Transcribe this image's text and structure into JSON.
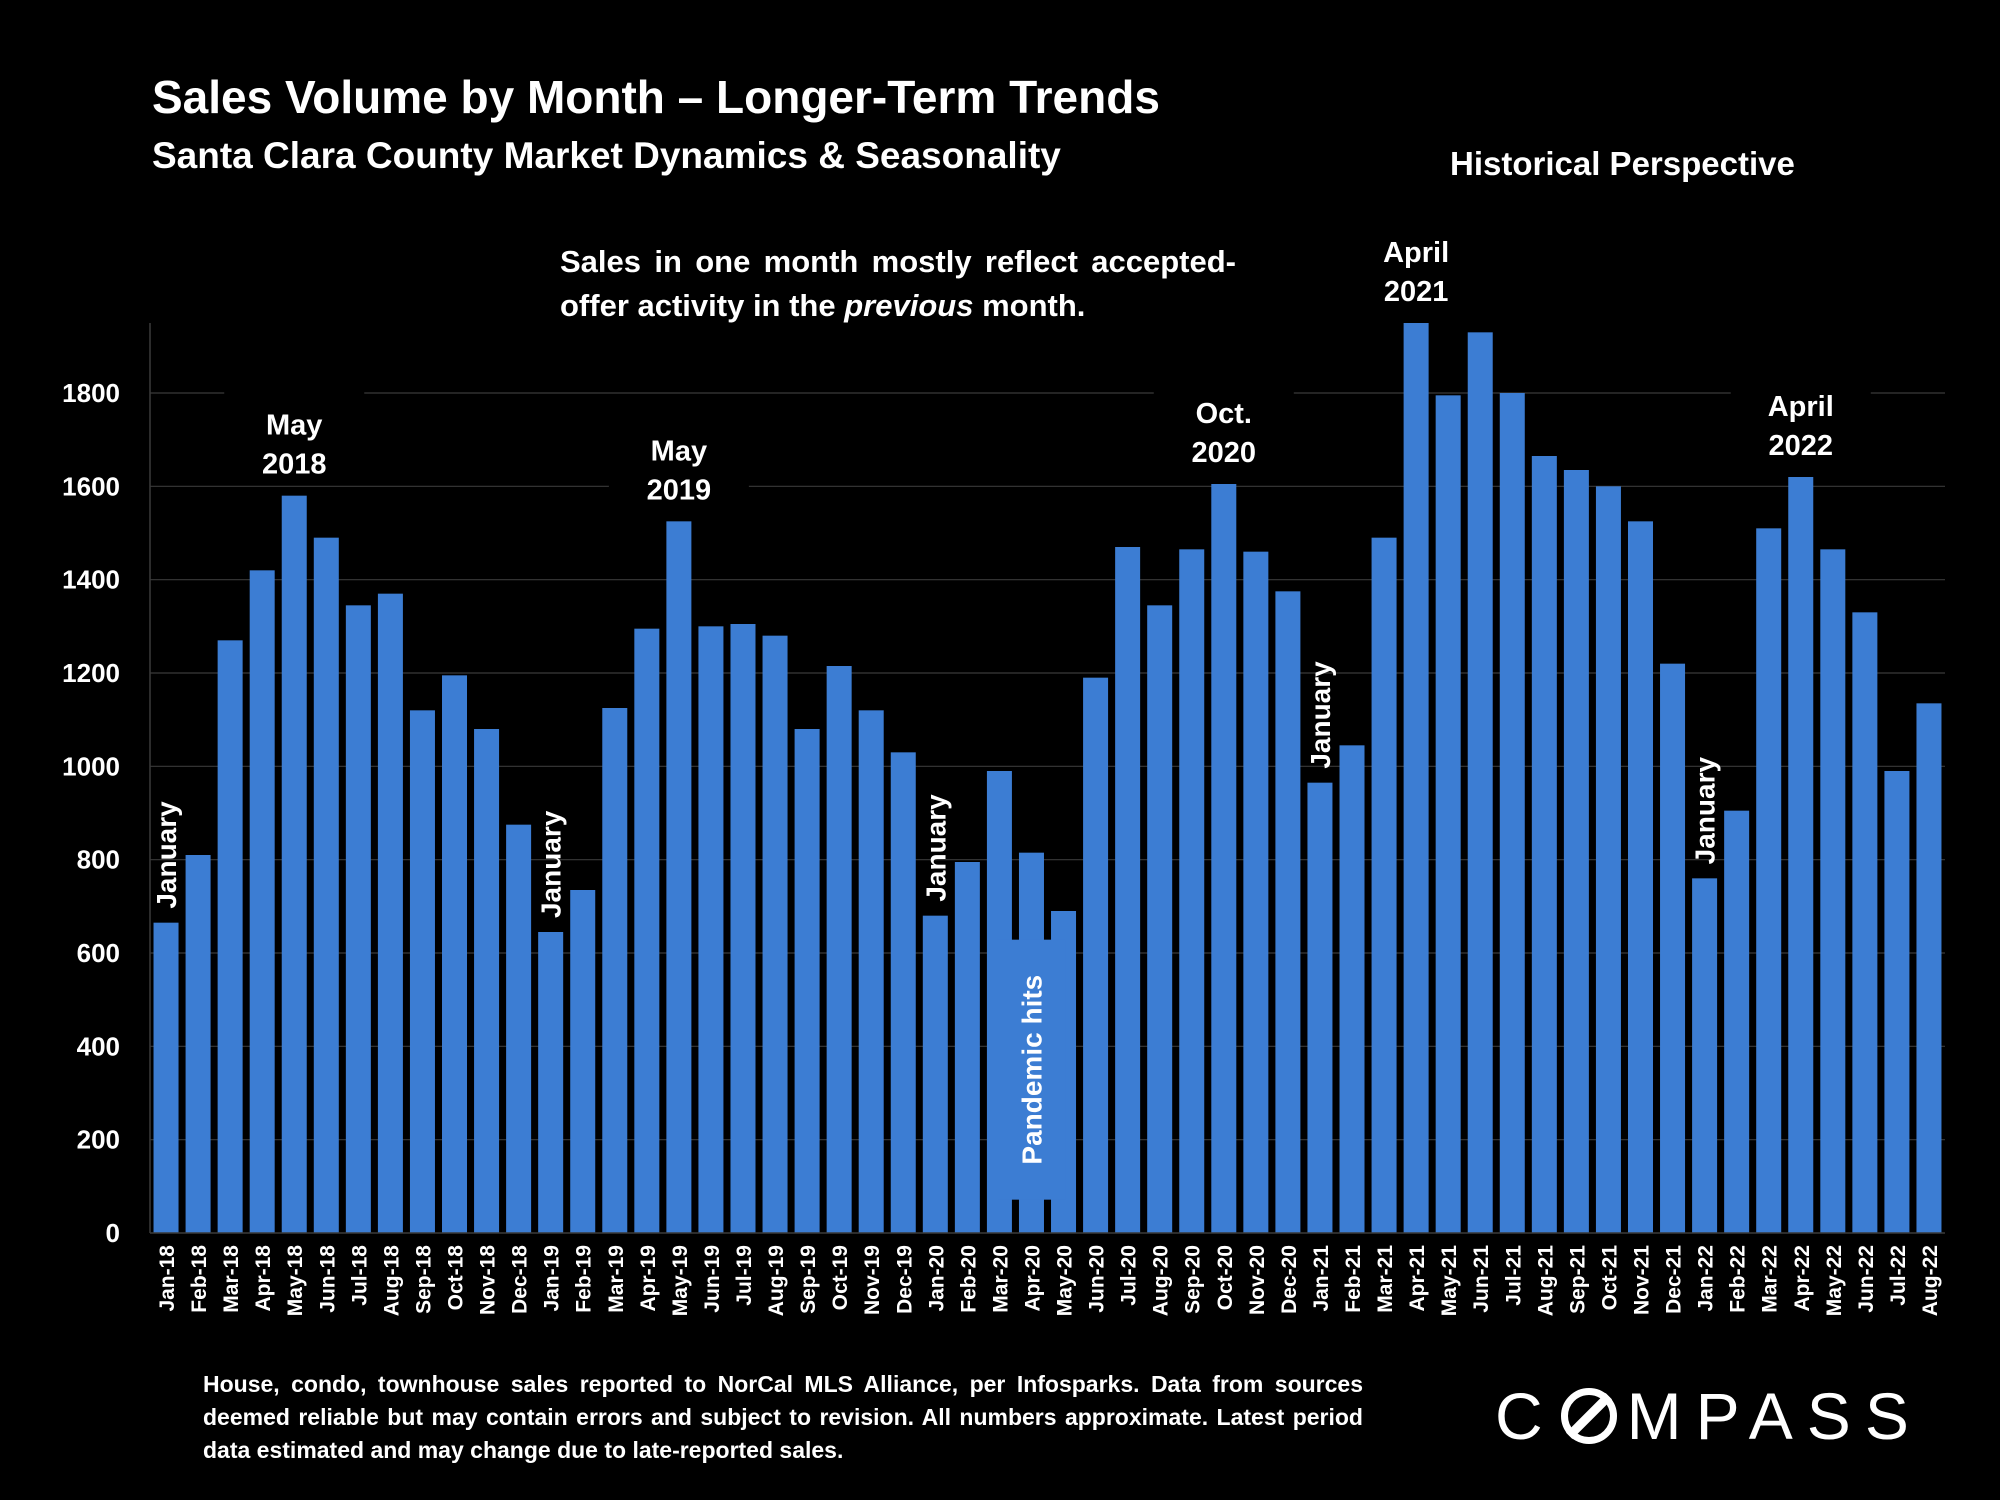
{
  "header": {
    "title": "Sales Volume by Month – Longer-Term Trends",
    "subtitle": "Santa Clara County Market Dynamics & Seasonality",
    "perspective": "Historical Perspective"
  },
  "note": {
    "part1": "Sales in one month mostly reflect accepted-offer activity in the ",
    "emphasis": "previous",
    "part2": " month."
  },
  "footnote": "House, condo, townhouse sales reported to NorCal MLS Alliance, per Infosparks. Data from sources deemed reliable but may contain errors and subject to revision. All numbers approximate. Latest period data estimated and may change due to late-reported sales.",
  "logo": {
    "before": "C",
    "after": "MPASS",
    "icon": "compass-o-icon"
  },
  "colors": {
    "bar": "#3c7dd3",
    "background": "#000000",
    "grid": "#3a3a3a",
    "text": "#ffffff"
  },
  "chart_data": {
    "type": "bar",
    "ylim": [
      0,
      1950
    ],
    "yticks": [
      0,
      200,
      400,
      600,
      800,
      1000,
      1200,
      1400,
      1600,
      1800
    ],
    "grid": true,
    "categories": [
      "Jan-18",
      "Feb-18",
      "Mar-18",
      "Apr-18",
      "May-18",
      "Jun-18",
      "Jul-18",
      "Aug-18",
      "Sep-18",
      "Oct-18",
      "Nov-18",
      "Dec-18",
      "Jan-19",
      "Feb-19",
      "Mar-19",
      "Apr-19",
      "May-19",
      "Jun-19",
      "Jul-19",
      "Aug-19",
      "Sep-19",
      "Oct-19",
      "Nov-19",
      "Dec-19",
      "Jan-20",
      "Feb-20",
      "Mar-20",
      "Apr-20",
      "May-20",
      "Jun-20",
      "Jul-20",
      "Aug-20",
      "Sep-20",
      "Oct-20",
      "Nov-20",
      "Dec-20",
      "Jan-21",
      "Feb-21",
      "Mar-21",
      "Apr-21",
      "May-21",
      "Jun-21",
      "Jul-21",
      "Aug-21",
      "Sep-21",
      "Oct-21",
      "Nov-21",
      "Dec-21",
      "Jan-22",
      "Feb-22",
      "Mar-22",
      "Apr-22",
      "May-22",
      "Jun-22",
      "Jul-22",
      "Aug-22"
    ],
    "values": [
      665,
      810,
      1270,
      1420,
      1580,
      1490,
      1345,
      1370,
      1120,
      1195,
      1080,
      875,
      645,
      735,
      1125,
      1295,
      1525,
      1300,
      1305,
      1280,
      1080,
      1215,
      1120,
      1030,
      680,
      795,
      990,
      815,
      690,
      1190,
      1470,
      1345,
      1465,
      1605,
      1460,
      1375,
      965,
      1045,
      1490,
      1950,
      1795,
      1930,
      1800,
      1665,
      1635,
      1600,
      1525,
      1220,
      760,
      905,
      1510,
      1620,
      1465,
      1330,
      990,
      1135
    ],
    "annotations": [
      {
        "text": "January",
        "index": 0,
        "value": 665,
        "vertical": true
      },
      {
        "text": "January",
        "index": 12,
        "value": 645,
        "vertical": true
      },
      {
        "text": "January",
        "index": 24,
        "value": 680,
        "vertical": true
      },
      {
        "text": "January",
        "index": 36,
        "value": 965,
        "vertical": true
      },
      {
        "text": "January",
        "index": 48,
        "value": 760,
        "vertical": true
      },
      {
        "lines": [
          "May",
          "2018"
        ],
        "index": 4,
        "value": 1580
      },
      {
        "lines": [
          "May",
          "2019"
        ],
        "index": 16,
        "value": 1525
      },
      {
        "lines": [
          "Oct.",
          "2020"
        ],
        "index": 33,
        "value": 1605
      },
      {
        "lines": [
          "April",
          "2021"
        ],
        "index": 39,
        "value": 1950
      },
      {
        "lines": [
          "April",
          "2022"
        ],
        "index": 51,
        "value": 1620
      }
    ],
    "pandemic_label": {
      "text": "Pandemic hits",
      "index": 27,
      "center_value": 350
    }
  }
}
